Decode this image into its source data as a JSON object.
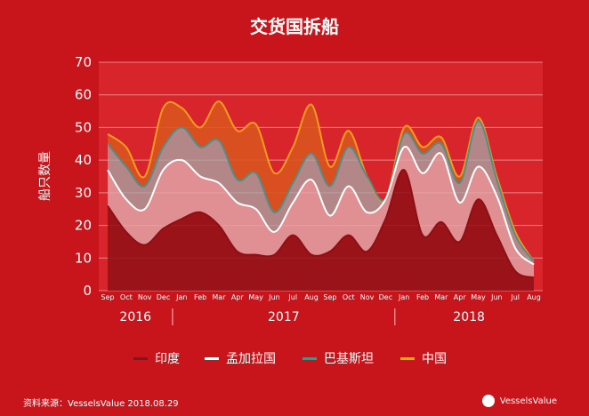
{
  "chart_data": {
    "type": "area",
    "title": "交货国拆船",
    "ylabel": "船只数量",
    "ylim": [
      0,
      70
    ],
    "yticks": [
      "0",
      "10",
      "20",
      "30",
      "40",
      "50",
      "60",
      "70"
    ],
    "x": [
      "Sep",
      "Oct",
      "Nov",
      "Dec",
      "Jan",
      "Feb",
      "Mar",
      "Apr",
      "May",
      "Jun",
      "Jul",
      "Aug",
      "Sep",
      "Oct",
      "Nov",
      "Dec",
      "Jan",
      "Feb",
      "Mar",
      "Apr",
      "May",
      "Jun",
      "Jul",
      "Aug"
    ],
    "years": [
      "2016",
      "2017",
      "2018"
    ],
    "series": [
      {
        "name": "印度",
        "color": "#8e0f14",
        "values": [
          26,
          18,
          14,
          19,
          22,
          24,
          20,
          12,
          11,
          11,
          17,
          11,
          12,
          17,
          12,
          22,
          37,
          17,
          21,
          15,
          28,
          17,
          6,
          4
        ]
      },
      {
        "name": "孟加拉国",
        "color": "#ffffff",
        "values": [
          37,
          28,
          25,
          37,
          40,
          35,
          33,
          27,
          25,
          18,
          27,
          34,
          23,
          32,
          24,
          28,
          44,
          36,
          42,
          27,
          38,
          29,
          13,
          8
        ]
      },
      {
        "name": "巴基斯坦",
        "color": "#4f8f86",
        "values": [
          45,
          38,
          32,
          44,
          50,
          44,
          46,
          34,
          36,
          24,
          33,
          42,
          32,
          44,
          35,
          28,
          48,
          42,
          45,
          33,
          52,
          34,
          17,
          9
        ]
      },
      {
        "name": "中国",
        "color": "#f39c1f",
        "values": [
          48,
          44,
          35,
          56,
          56,
          50,
          58,
          49,
          51,
          36,
          44,
          57,
          38,
          49,
          35,
          28,
          50,
          44,
          47,
          35,
          53,
          35,
          18,
          9
        ]
      }
    ],
    "legend_position": "bottom"
  },
  "footer": {
    "source": "资料来源：VesselsValue 2018.08.29",
    "brand": "VesselsValue"
  }
}
